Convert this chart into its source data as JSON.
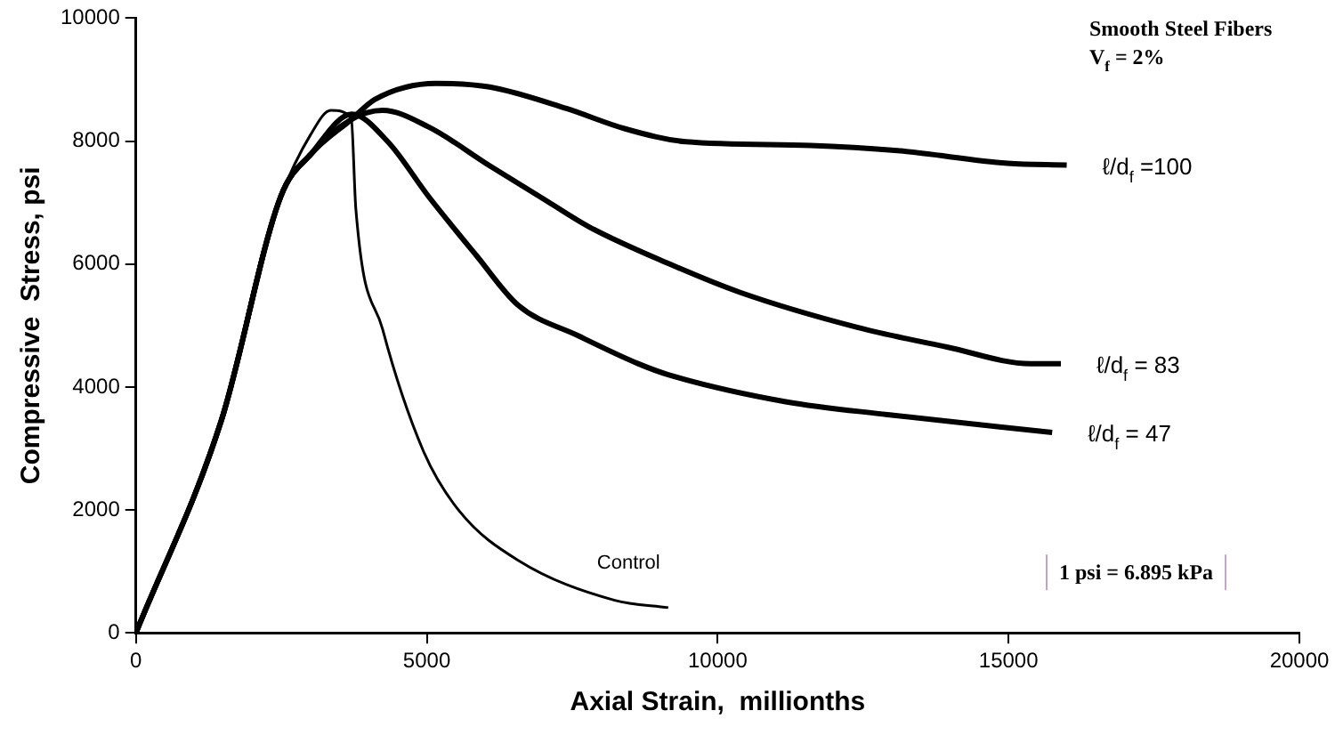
{
  "chart_data": {
    "type": "line",
    "xlabel": "Axial Strain,  millionths",
    "ylabel": "Compressive  Stress, psi",
    "xlim": [
      0,
      20000
    ],
    "xticks": [
      0,
      5000,
      10000,
      15000,
      20000
    ],
    "ylim": [
      0,
      10000
    ],
    "yticks": [
      0,
      2000,
      4000,
      6000,
      8000,
      10000
    ],
    "grid": false,
    "legend": false,
    "marker": "none",
    "line_style": "solid",
    "series": [
      {
        "name": "ℓ/d$_{f}$ =100",
        "color": "#000000",
        "x": [
          0,
          1470,
          2490,
          3010,
          3700,
          4110,
          5160,
          6080,
          7400,
          8410,
          9450,
          11600,
          13140,
          14980,
          16000
        ],
        "values": [
          0,
          3460,
          7100,
          7790,
          8350,
          8680,
          8940,
          8880,
          8530,
          8200,
          7990,
          7930,
          7840,
          7640,
          7610
        ]
      },
      {
        "name": "ℓ/d$_{f}$ = 83",
        "color": "#000000",
        "x": [
          0,
          1470,
          2490,
          3010,
          3700,
          4240,
          5030,
          6080,
          7090,
          7800,
          9150,
          10380,
          12400,
          13940,
          15380,
          15900
        ],
        "values": [
          0,
          3460,
          7100,
          7790,
          8350,
          8500,
          8230,
          7600,
          7010,
          6600,
          6010,
          5540,
          4970,
          4650,
          4380,
          4380
        ]
      },
      {
        "name": "ℓ/d$_{f}$ = 47",
        "color": "#000000",
        "x": [
          0,
          1470,
          2490,
          3010,
          3710,
          4330,
          5030,
          5860,
          6570,
          7610,
          8630,
          9150,
          11170,
          12920,
          15750
        ],
        "values": [
          0,
          3460,
          7100,
          7790,
          8440,
          7990,
          7100,
          6130,
          5330,
          4830,
          4380,
          4200,
          3760,
          3550,
          3260
        ]
      },
      {
        "name": "Control",
        "color": "#000000",
        "x": [
          0,
          1470,
          2180,
          2490,
          3000,
          3350,
          3700,
          3780,
          4240,
          4940,
          5560,
          6570,
          8230,
          9150
        ],
        "values": [
          0,
          3460,
          6200,
          7100,
          8100,
          8500,
          8380,
          6900,
          4940,
          2960,
          1980,
          1180,
          530,
          410
        ]
      }
    ],
    "annotations": [
      "Smooth Steel Fibers",
      "V$_{f}$ = 2%",
      "1 psi = 6.895 kPa"
    ]
  }
}
